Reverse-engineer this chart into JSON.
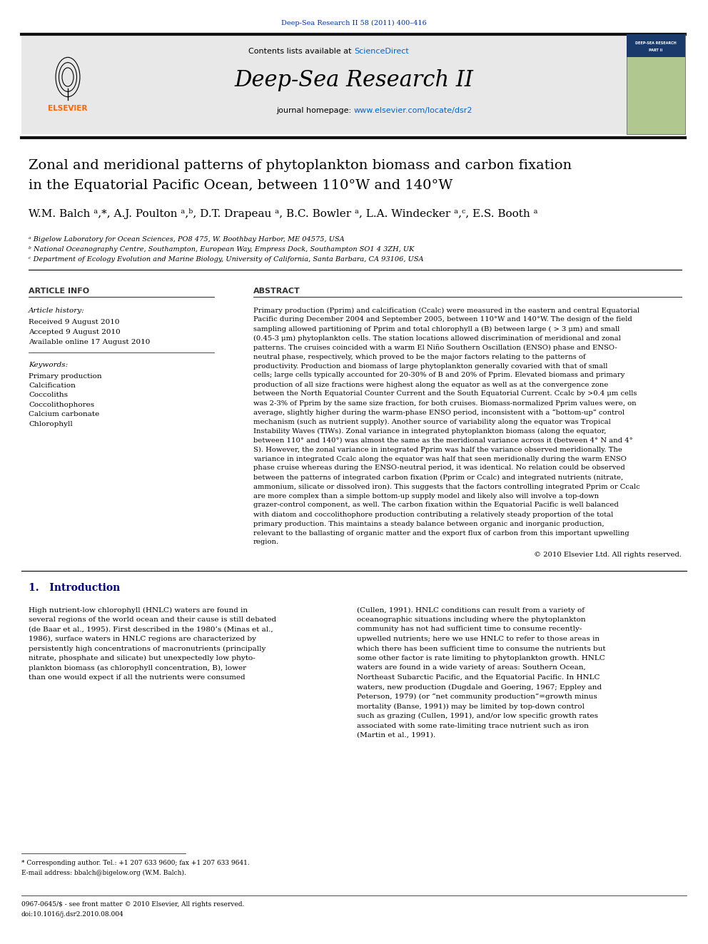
{
  "page_width": 9.92,
  "page_height": 13.23,
  "background_color": "#ffffff",
  "journal_ref_text": "Deep-Sea Research II 58 (2011) 400–416",
  "journal_ref_color": "#003399",
  "contents_text": "Contents lists available at ",
  "sciencedirect_text": "ScienceDirect",
  "sciencedirect_color": "#0066cc",
  "journal_name": "Deep-Sea Research II",
  "journal_homepage_text": "journal homepage: ",
  "journal_homepage_url": "www.elsevier.com/locate/dsr2",
  "journal_homepage_url_color": "#0066cc",
  "header_bg_color": "#e8e8e8",
  "title_line1": "Zonal and meridional patterns of phytoplankton biomass and carbon fixation",
  "title_line2": "in the Equatorial Pacific Ocean, between 110°W and 140°W",
  "authors_line": "W.M. Balch ᵃ,*, A.J. Poulton ᵃ,ᵇ, D.T. Drapeau ᵃ, B.C. Bowler ᵃ, L.A. Windecker ᵃ,ᶜ, E.S. Booth ᵃ",
  "affil_a": "ᵃ Bigelow Laboratory for Ocean Sciences, PO8 475, W. Boothbay Harbor, ME 04575, USA",
  "affil_b": "ᵇ National Oceanography Centre, Southampton, European Way, Empress Dock, Southampton SO1 4 3ZH, UK",
  "affil_c": "ᶜ Department of Ecology Evolution and Marine Biology, University of California, Santa Barbara, CA 93106, USA",
  "article_info_title": "ARTICLE INFO",
  "abstract_title": "ABSTRACT",
  "article_history_title": "Article history:",
  "received_text": "Received 9 August 2010",
  "accepted_text": "Accepted 9 August 2010",
  "available_text": "Available online 17 August 2010",
  "keywords_title": "Keywords:",
  "keywords": [
    "Primary production",
    "Calcification",
    "Coccoliths",
    "Coccolithophores",
    "Calcium carbonate",
    "Chlorophyll"
  ],
  "copyright_text": "© 2010 Elsevier Ltd. All rights reserved.",
  "section1_title": "1.   Introduction",
  "intro_col1_lines": [
    "High nutrient-low chlorophyll (HNLC) waters are found in",
    "several regions of the world ocean and their cause is still debated",
    "(de Baar et al., 1995). First described in the 1980’s (Minas et al.,",
    "1986), surface waters in HNLC regions are characterized by",
    "persistently high concentrations of macronutrients (principally",
    "nitrate, phosphate and silicate) but unexpectedly low phyto-",
    "plankton biomass (as chlorophyll concentration, B), lower",
    "than one would expect if all the nutrients were consumed"
  ],
  "intro_col2_lines": [
    "(Cullen, 1991). HNLC conditions can result from a variety of",
    "oceanographic situations including where the phytoplankton",
    "community has not had sufficient time to consume recently-",
    "upwelled nutrients; here we use HNLC to refer to those areas in",
    "which there has been sufficient time to consume the nutrients but",
    "some other factor is rate limiting to phytoplankton growth. HNLC",
    "waters are found in a wide variety of areas: Southern Ocean,",
    "Northeast Subarctic Pacific, and the Equatorial Pacific. In HNLC",
    "waters, new production (Dugdale and Goering, 1967; Eppley and",
    "Peterson, 1979) (or “net community production”=growth minus",
    "mortality (Banse, 1991)) may be limited by top-down control",
    "such as grazing (Cullen, 1991), and/or low specific growth rates",
    "associated with some rate-limiting trace nutrient such as iron",
    "(Martin et al., 1991)."
  ],
  "abstract_lines": [
    "Primary production (Pprim) and calcification (Ccalc) were measured in the eastern and central Equatorial",
    "Pacific during December 2004 and September 2005, between 110°W and 140°W. The design of the field",
    "sampling allowed partitioning of Pprim and total chlorophyll a (B) between large ( > 3 μm) and small",
    "(0.45-3 μm) phytoplankton cells. The station locations allowed discrimination of meridional and zonal",
    "patterns. The cruises coincided with a warm El Niño Southern Oscillation (ENSO) phase and ENSO-",
    "neutral phase, respectively, which proved to be the major factors relating to the patterns of",
    "productivity. Production and biomass of large phytoplankton generally covaried with that of small",
    "cells; large cells typically accounted for 20-30% of B and 20% of Pprim. Elevated biomass and primary",
    "production of all size fractions were highest along the equator as well as at the convergence zone",
    "between the North Equatorial Counter Current and the South Equatorial Current. Ccalc by >0.4 μm cells",
    "was 2-3% of Pprim by the same size fraction, for both cruises. Biomass-normalized Pprim values were, on",
    "average, slightly higher during the warm-phase ENSO period, inconsistent with a “bottom-up” control",
    "mechanism (such as nutrient supply). Another source of variability along the equator was Tropical",
    "Instability Waves (TIWs). Zonal variance in integrated phytoplankton biomass (along the equator,",
    "between 110° and 140°) was almost the same as the meridional variance across it (between 4° N and 4°",
    "S). However, the zonal variance in integrated Pprim was half the variance observed meridionally. The",
    "variance in integrated Ccalc along the equator was half that seen meridionally during the warm ENSO",
    "phase cruise whereas during the ENSO-neutral period, it was identical. No relation could be observed",
    "between the patterns of integrated carbon fixation (Pprim or Ccalc) and integrated nutrients (nitrate,",
    "ammonium, silicate or dissolved iron). This suggests that the factors controlling integrated Pprim or Ccalc",
    "are more complex than a simple bottom-up supply model and likely also will involve a top-down",
    "grazer-control component, as well. The carbon fixation within the Equatorial Pacific is well balanced",
    "with diatom and coccolithophore production contributing a relatively steady proportion of the total",
    "primary production. This maintains a steady balance between organic and inorganic production,",
    "relevant to the ballasting of organic matter and the export flux of carbon from this important upwelling",
    "region."
  ],
  "footnote_line1": "* Corresponding author. Tel.: +1 207 633 9600; fax +1 207 633 9641.",
  "footnote_line2": "E-mail address: bbalch@bigelow.org (W.M. Balch).",
  "footer_line1": "0967-0645/$ - see front matter © 2010 Elsevier, All rights reserved.",
  "footer_line2": "doi:10.1016/j.dsr2.2010.08.004",
  "divider_color": "#000000",
  "section_color": "#000080",
  "link_color": "#003399"
}
